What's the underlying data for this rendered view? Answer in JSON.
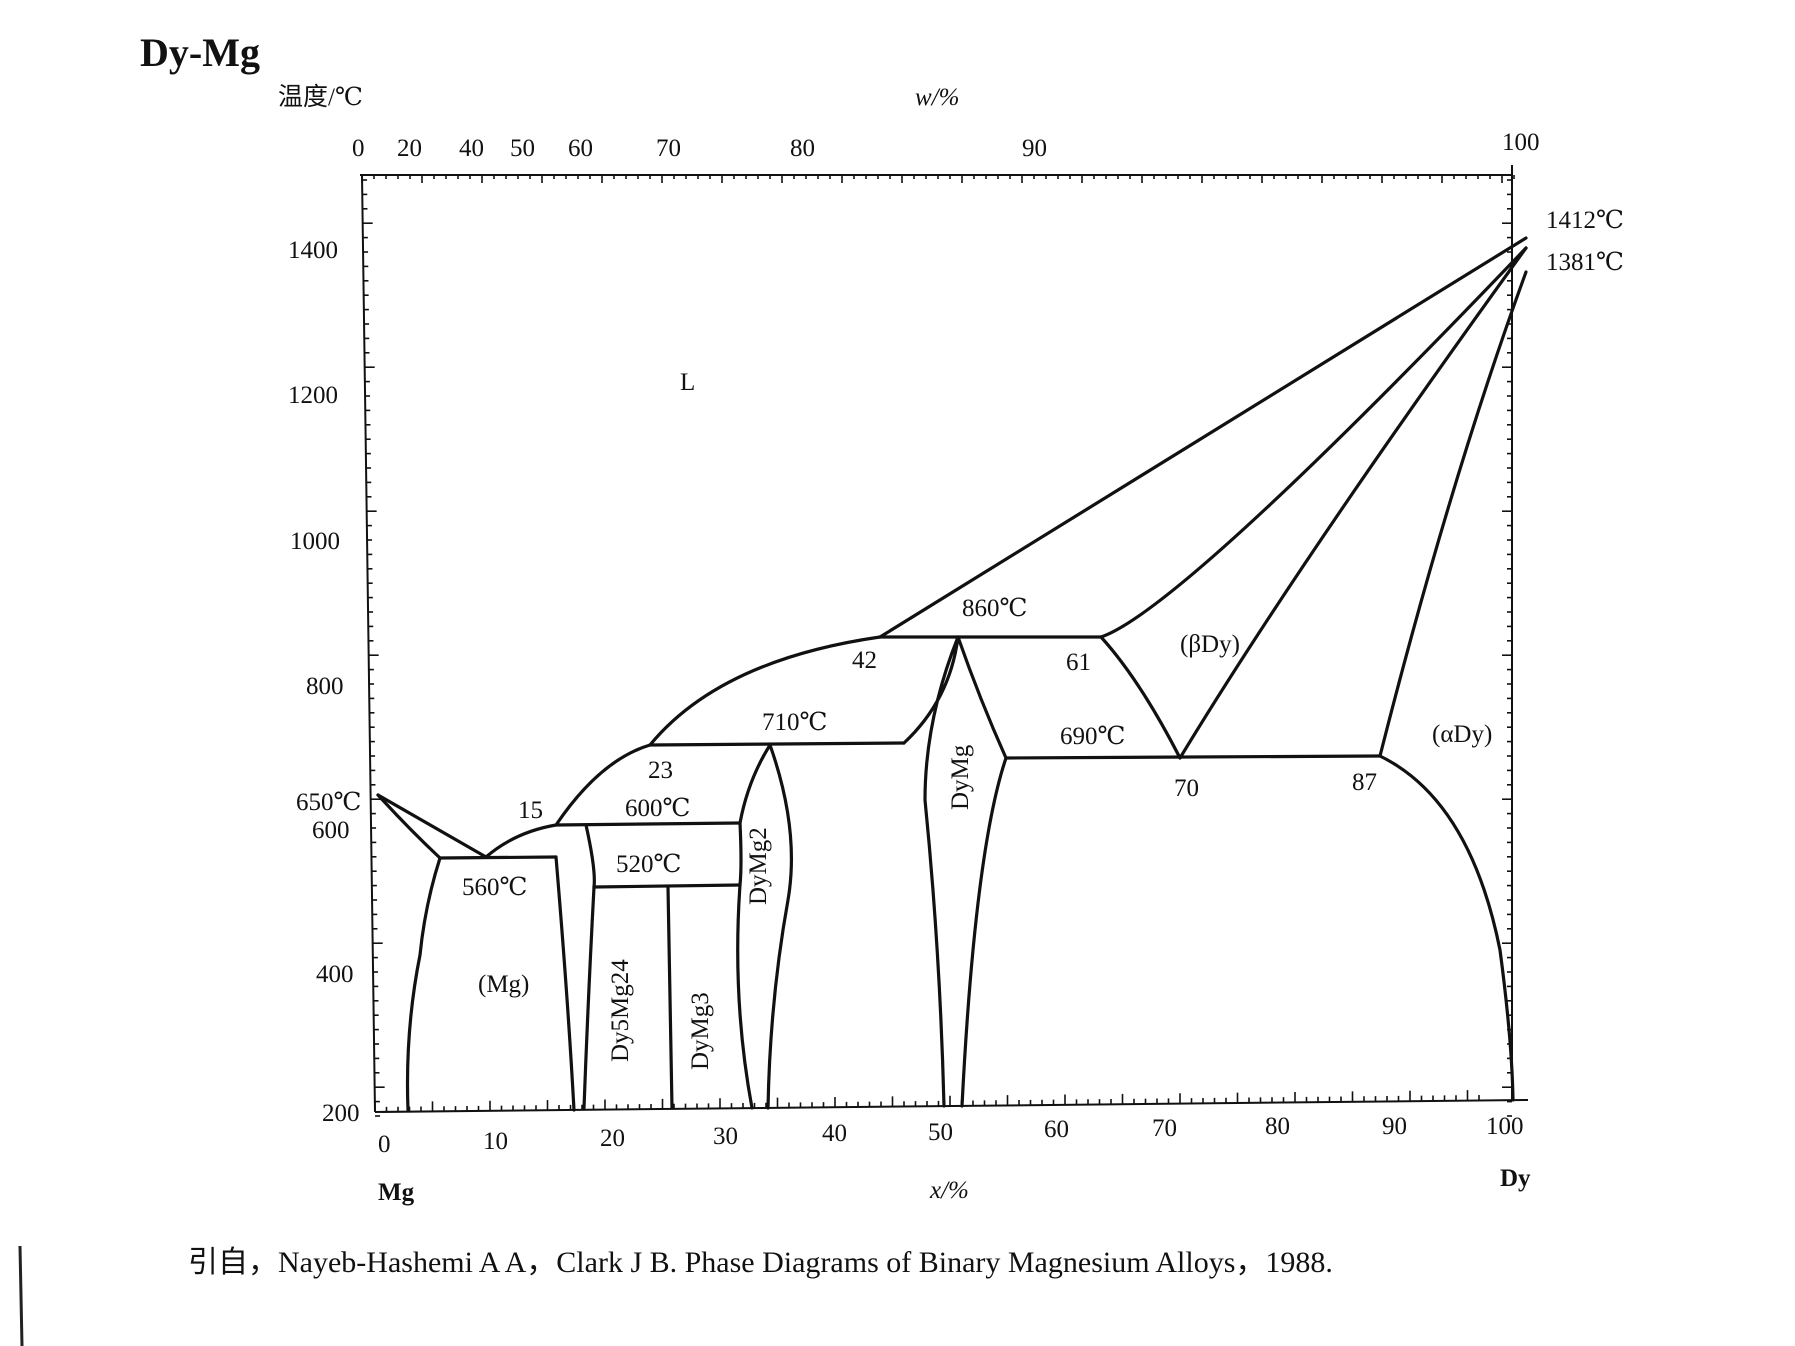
{
  "title": "Dy-Mg",
  "y_axis_label": "温度/℃",
  "top_axis_label": "w/%",
  "bottom_axis_label": "x/%",
  "left_element": "Mg",
  "right_element": "Dy",
  "y_ticks": [
    "1400",
    "1200",
    "1000",
    "800",
    "600",
    "400",
    "200"
  ],
  "top_ticks": [
    "0",
    "20",
    "40",
    "50",
    "60",
    "70",
    "80",
    "90",
    "100"
  ],
  "bottom_ticks": [
    "0",
    "10",
    "20",
    "30",
    "40",
    "50",
    "60",
    "70",
    "80",
    "90",
    "100"
  ],
  "temperature_labels": {
    "mg_melt": "650℃",
    "dy_melt": "1412℃",
    "dy_transform": "1381℃",
    "eutectic_mg": "560℃",
    "peritectic_600": "600℃",
    "eutectoid_520": "520℃",
    "peritectic_710": "710℃",
    "eutectic_860": "860℃",
    "eutectoid_690": "690℃"
  },
  "composition_labels": {
    "c15": "15",
    "c23": "23",
    "c42": "42",
    "c61": "61",
    "c70": "70",
    "c87": "87"
  },
  "phases": {
    "liquid": "L",
    "mg": "(Mg)",
    "dy5mg24": "Dy5Mg24",
    "dymg3": "DyMg3",
    "dymg2": "DyMg2",
    "dymg": "DyMg",
    "beta_dy": "(βDy)",
    "alpha_dy": "(αDy)"
  },
  "reference": "引自，Nayeb-Hashemi A A，Clark J B. Phase Diagrams of Binary Magnesium Alloys，1988."
}
